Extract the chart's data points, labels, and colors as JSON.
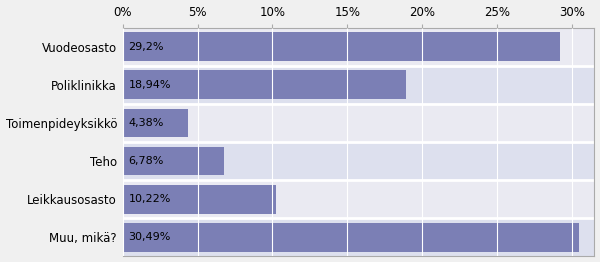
{
  "categories": [
    "Vuodeosasto",
    "Poliklinikka",
    "Toimenpideyksikkö",
    "Teho",
    "Leikkausosasto",
    "Muu, mikä?"
  ],
  "values": [
    29.2,
    18.94,
    4.38,
    6.78,
    10.22,
    30.49
  ],
  "labels": [
    "29,2%",
    "18,94%",
    "4,38%",
    "6,78%",
    "10,22%",
    "30,49%"
  ],
  "bar_color": "#7b7fb5",
  "row_colors": [
    "#dde0ee",
    "#eaeaf2"
  ],
  "fig_bg_color": "#f0f0f0",
  "plot_bg_color": "#eaeaf2",
  "xlim": [
    0,
    31.5
  ],
  "xticks": [
    0,
    5,
    10,
    15,
    20,
    25,
    30
  ],
  "xtick_labels": [
    "0%",
    "5%",
    "10%",
    "15%",
    "20%",
    "25%",
    "30%"
  ],
  "label_fontsize": 8.5,
  "tick_fontsize": 8.5,
  "bar_label_fontsize": 8.0,
  "bar_height": 0.75
}
